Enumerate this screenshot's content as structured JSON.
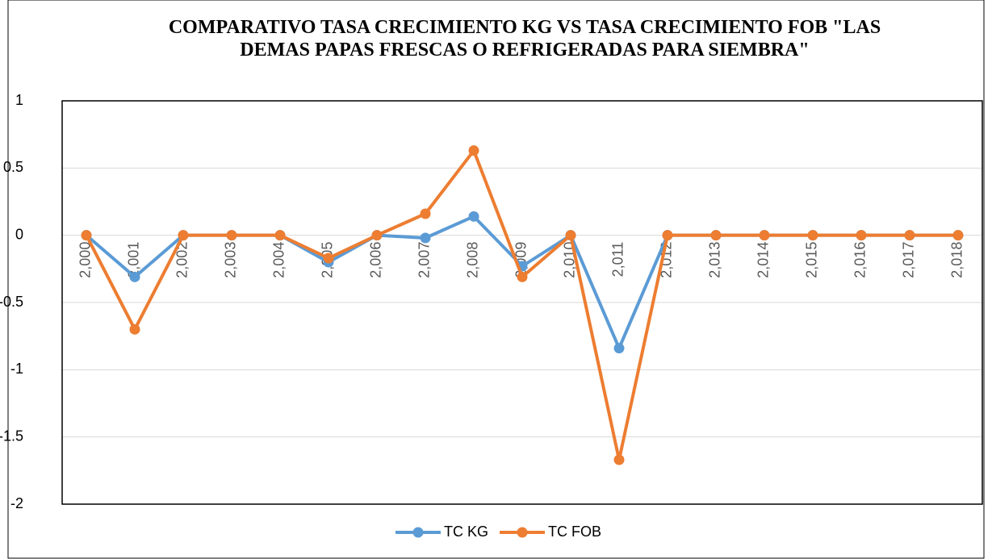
{
  "chart_data": {
    "type": "line",
    "title": "COMPARATIVO TASA CRECIMIENTO KG VS TASA CRECIMIENTO FOB \"LAS DEMAS PAPAS FRESCAS O REFRIGERADAS PARA SIEMBRA\"",
    "categories": [
      "2,000",
      "2,001",
      "2,002",
      "2,003",
      "2,004",
      "2,005",
      "2,006",
      "2,007",
      "2,008",
      "2,009",
      "2,010",
      "2,011",
      "2,012",
      "2,013",
      "2,014",
      "2,015",
      "2,016",
      "2,017",
      "2,018"
    ],
    "series": [
      {
        "name": "TC KG",
        "color": "#5b9bd5",
        "values": [
          0,
          -0.31,
          0,
          0,
          0,
          -0.2,
          0,
          -0.02,
          0.14,
          -0.23,
          0,
          -0.84,
          0,
          0,
          0,
          0,
          0,
          0,
          0
        ]
      },
      {
        "name": "TC FOB",
        "color": "#ed7d31",
        "values": [
          0,
          -0.7,
          0,
          0,
          0,
          -0.17,
          0,
          0.16,
          0.63,
          -0.31,
          0,
          -1.67,
          0,
          0,
          0,
          0,
          0,
          0,
          0
        ]
      }
    ],
    "ylim": [
      -2,
      1
    ],
    "yticks": [
      1,
      0.5,
      0,
      -0.5,
      -1,
      -1.5,
      -2
    ],
    "grid": true,
    "legend": "bottom"
  }
}
